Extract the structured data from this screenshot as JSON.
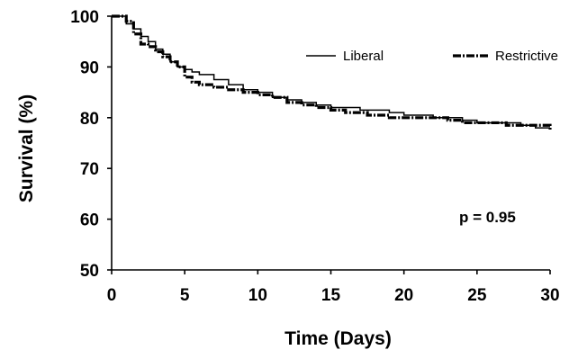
{
  "chart_data": {
    "type": "line",
    "title": "",
    "xlabel": "Time (Days)",
    "ylabel": "Survival (%)",
    "xlim": [
      0,
      30
    ],
    "ylim": [
      50,
      100
    ],
    "xticks": [
      0,
      5,
      10,
      15,
      20,
      25,
      30
    ],
    "yticks": [
      50,
      60,
      70,
      80,
      90,
      100
    ],
    "grid": false,
    "legend_position": "top-right",
    "annotation": "p = 0.95",
    "series": [
      {
        "name": "Liberal",
        "style": "solid-thin",
        "color": "#000000",
        "x": [
          0,
          0.8,
          1.0,
          1.5,
          2.0,
          2.5,
          3.0,
          3.5,
          4.0,
          4.5,
          5.0,
          5.5,
          6.0,
          7.0,
          8.0,
          9.0,
          10.0,
          11.0,
          12.0,
          13.0,
          14.0,
          15.0,
          17.0,
          18.0,
          19.0,
          20.0,
          22.0,
          24.0,
          25.0,
          27.0,
          28.0,
          29.0,
          29.8,
          30.0
        ],
        "y": [
          100,
          100,
          98.5,
          97.5,
          96,
          95,
          93.5,
          92.5,
          91,
          90,
          89.5,
          89,
          88.5,
          87.5,
          86.5,
          85.5,
          85,
          84,
          83.5,
          83,
          82.5,
          82,
          81.5,
          81.5,
          81,
          80.5,
          80,
          79.5,
          79,
          79,
          78.5,
          78,
          78,
          78
        ]
      },
      {
        "name": "Restrictive",
        "style": "dash-dot-thick",
        "color": "#000000",
        "x": [
          0,
          1.0,
          1.5,
          2.0,
          2.5,
          3.0,
          3.5,
          4.0,
          4.5,
          5.0,
          5.5,
          6.0,
          7.0,
          8.0,
          9.0,
          10.0,
          11.0,
          12.0,
          13.0,
          14.0,
          15.0,
          16.0,
          17.0,
          17.5,
          19.0,
          21.0,
          23.0,
          24.0,
          25.0,
          27.0,
          29.0,
          30.0
        ],
        "y": [
          100,
          99,
          96.5,
          94.5,
          94,
          93,
          92,
          91,
          90,
          88,
          87,
          86.5,
          86,
          85.5,
          85,
          84.5,
          84,
          83,
          82.5,
          82,
          81.5,
          81,
          81,
          80.5,
          80,
          80,
          79.5,
          79,
          79,
          78.5,
          78.5,
          77.5
        ]
      }
    ]
  }
}
